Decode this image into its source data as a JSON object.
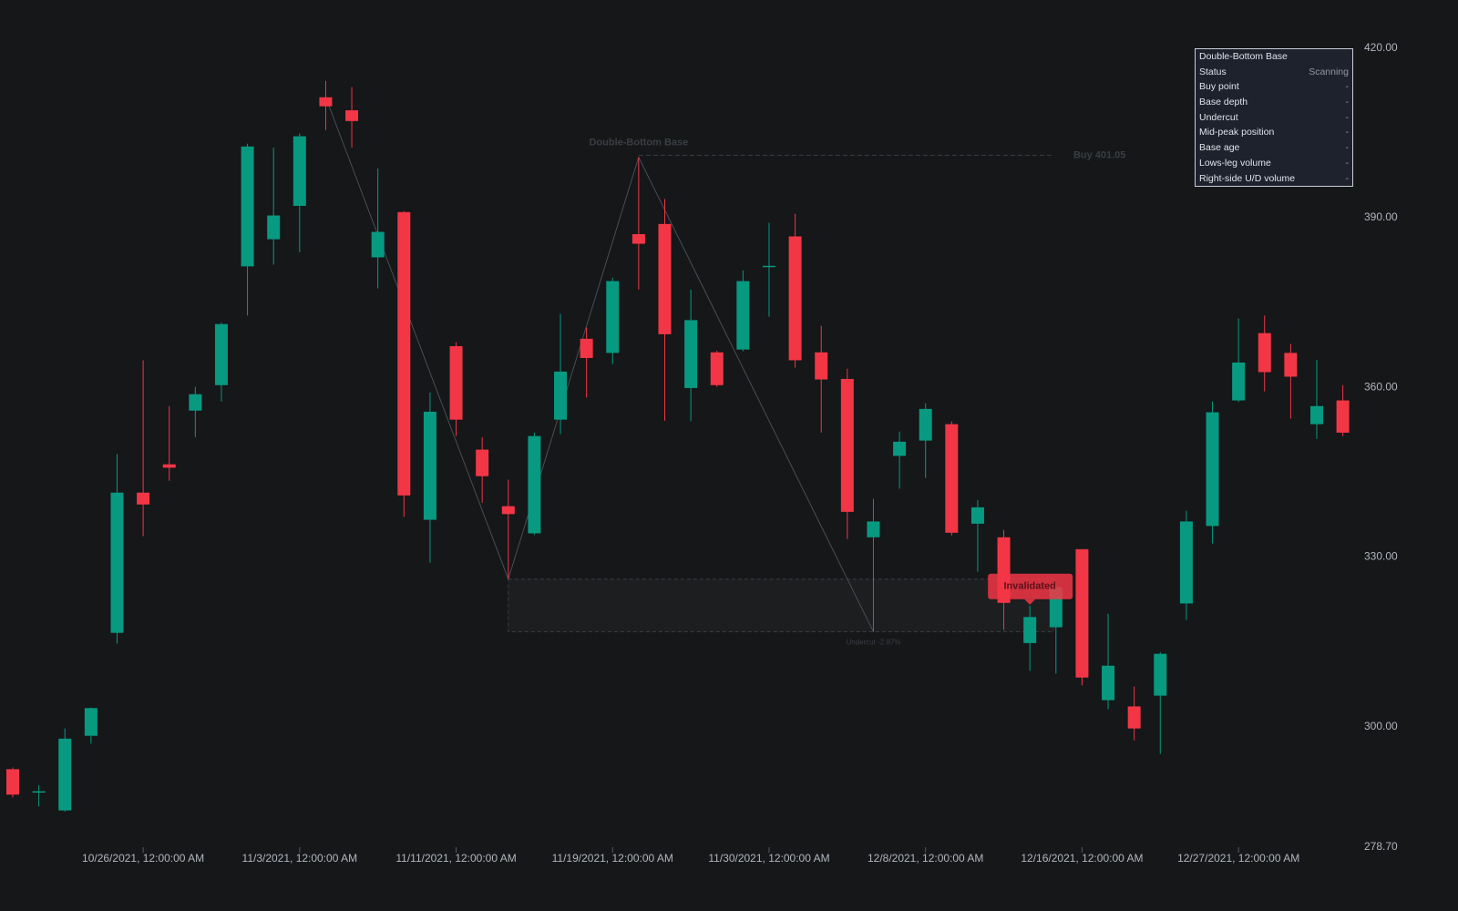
{
  "chart_data": {
    "type": "candlestick",
    "categories": [
      null,
      null,
      null,
      null,
      null,
      "10/26/2021, 12:00:00 AM",
      null,
      null,
      null,
      null,
      null,
      "11/3/2021, 12:00:00 AM",
      null,
      null,
      null,
      null,
      null,
      "11/11/2021, 12:00:00 AM",
      null,
      null,
      null,
      null,
      null,
      "11/19/2021, 12:00:00 AM",
      null,
      null,
      null,
      null,
      null,
      "11/30/2021, 12:00:00 AM",
      null,
      null,
      null,
      null,
      null,
      "12/8/2021, 12:00:00 AM",
      null,
      null,
      null,
      null,
      null,
      "12/16/2021, 12:00:00 AM",
      null,
      null,
      null,
      null,
      null,
      "12/27/2021, 12:00:00 AM",
      null,
      null,
      null,
      null
    ],
    "open": [
      292.5,
      288.4,
      285.2,
      298.4,
      316.6,
      341.4,
      346.4,
      355.9,
      360.4,
      381.4,
      386.2,
      392.1,
      411.3,
      409.0,
      383.0,
      391.0,
      336.6,
      367.3,
      349.0,
      339.0,
      334.2,
      354.3,
      368.6,
      366.1,
      387.1,
      388.9,
      359.9,
      366.2,
      366.7,
      381.3,
      386.7,
      366.2,
      361.5,
      333.5,
      347.9,
      350.6,
      353.5,
      335.9,
      333.5,
      314.8,
      317.6,
      331.4,
      304.7,
      303.6,
      305.5,
      321.8,
      335.5,
      357.7,
      369.6,
      366.1,
      353.5,
      357.7
    ],
    "high": [
      292.8,
      289.7,
      299.7,
      303.4,
      348.2,
      364.8,
      356.7,
      360.1,
      371.5,
      403.1,
      402.4,
      404.9,
      414.2,
      413.1,
      398.7,
      391.2,
      359.1,
      368.0,
      351.2,
      343.7,
      352.0,
      373.0,
      370.6,
      379.4,
      400.7,
      393.3,
      377.3,
      366.5,
      380.7,
      389.1,
      390.7,
      370.9,
      363.3,
      340.3,
      352.2,
      357.2,
      354.0,
      340.1,
      334.8,
      321.4,
      325.5,
      331.4,
      320.0,
      307.1,
      313.2,
      338.2,
      357.5,
      372.2,
      372.7,
      367.7,
      364.9,
      360.4
    ],
    "low": [
      287.5,
      285.9,
      285.0,
      297.0,
      314.7,
      333.7,
      343.5,
      351.2,
      357.5,
      372.7,
      381.7,
      383.9,
      405.5,
      402.4,
      377.5,
      337.1,
      329.0,
      351.4,
      339.6,
      326.1,
      333.9,
      351.7,
      358.2,
      364.1,
      377.3,
      354.1,
      354.0,
      360.1,
      366.4,
      372.5,
      363.5,
      352.0,
      333.2,
      316.8,
      342.1,
      344.0,
      333.8,
      327.4,
      317.1,
      309.9,
      309.4,
      307.3,
      303.1,
      297.6,
      295.2,
      318.9,
      332.4,
      357.4,
      359.3,
      354.5,
      350.9,
      351.4
    ],
    "close": [
      288.0,
      288.6,
      297.9,
      303.3,
      341.4,
      339.3,
      345.8,
      358.8,
      371.2,
      402.6,
      390.4,
      404.4,
      409.7,
      407.1,
      387.5,
      340.9,
      355.7,
      354.3,
      344.3,
      337.6,
      351.4,
      362.8,
      365.2,
      378.8,
      385.4,
      369.4,
      371.9,
      360.4,
      378.8,
      381.5,
      364.8,
      361.4,
      338.0,
      336.3,
      350.4,
      356.2,
      334.3,
      338.8,
      321.9,
      319.4,
      324.7,
      308.7,
      310.8,
      299.7,
      312.9,
      336.3,
      355.6,
      364.4,
      362.7,
      361.9,
      356.7,
      352.0
    ],
    "up_color": "#089981",
    "down_color": "#f23645",
    "ylim": [
      278.7,
      428.5
    ],
    "yticks": [
      {
        "value": 278.7,
        "label": "278.70"
      },
      {
        "value": 300,
        "label": "300.00"
      },
      {
        "value": 330,
        "label": "330.00"
      },
      {
        "value": 360,
        "label": "360.00"
      },
      {
        "value": 390,
        "label": "390.00"
      },
      {
        "value": 420,
        "label": "420.00"
      }
    ],
    "pattern": {
      "label": "Double-Bottom Base",
      "pivots": {
        "x": [
          12,
          19,
          24,
          33
        ],
        "y": [
          411.3,
          326.1,
          400.7,
          316.8
        ]
      },
      "buy": 401.05,
      "buy_label": "Buy 401.05",
      "undercut_label": "Undercut -2.87%",
      "status": "Invalidated"
    }
  },
  "panel": {
    "title": "Double-Bottom Base",
    "rows": [
      [
        "Status",
        "Scanning"
      ],
      [
        "Buy point",
        "-"
      ],
      [
        "Base depth",
        "-"
      ],
      [
        "Undercut",
        "-"
      ],
      [
        "Mid-peak position",
        "-"
      ],
      [
        "Base age",
        "-"
      ],
      [
        "Lows-leg volume",
        "-"
      ],
      [
        "Right-side U/D volume",
        "-"
      ]
    ]
  }
}
